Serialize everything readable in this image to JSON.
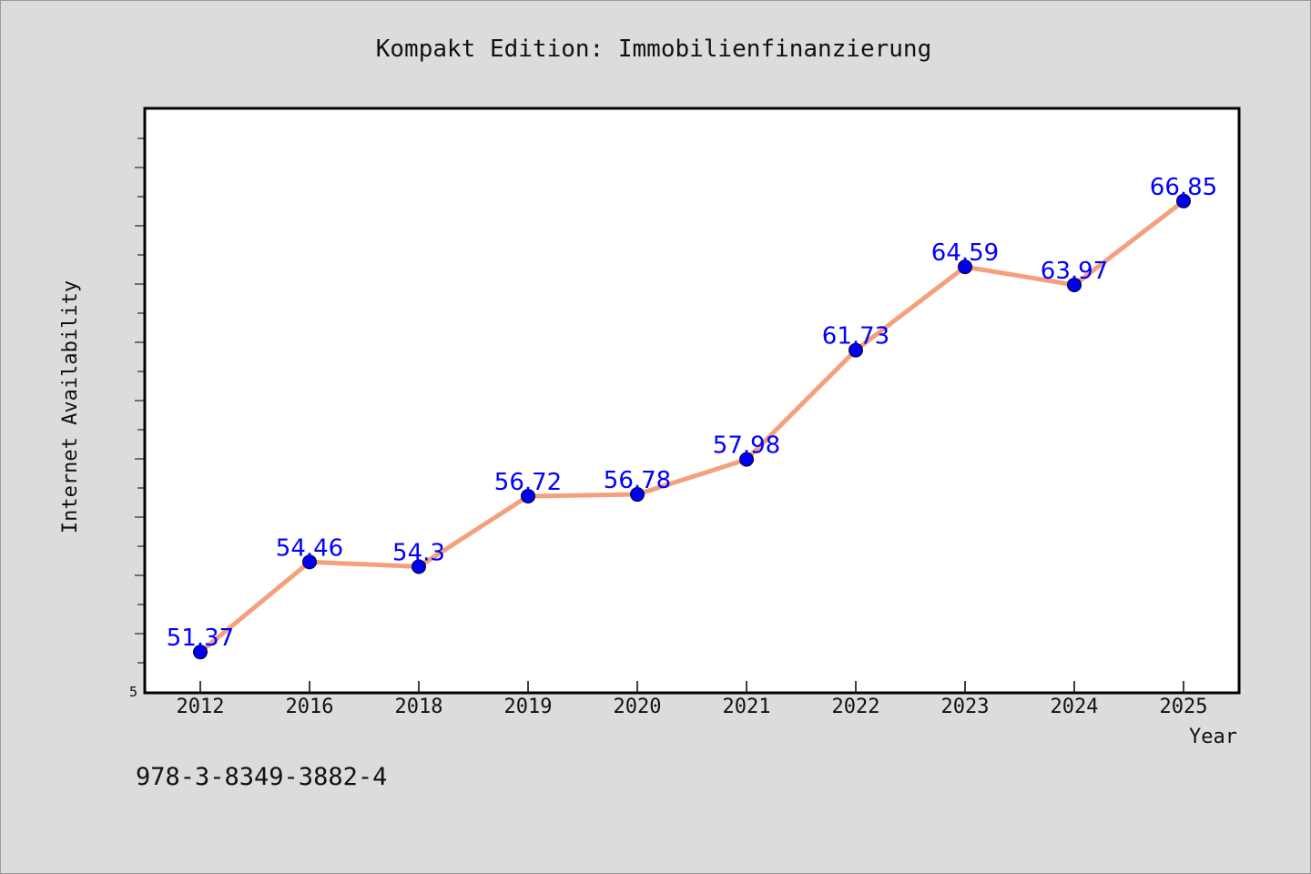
{
  "chart_data": {
    "type": "line",
    "title": "Kompakt Edition: Immobilienfinanzierung",
    "xlabel": "Year",
    "ylabel": "Internet Availability",
    "categories": [
      "2012",
      "2016",
      "2018",
      "2019",
      "2020",
      "2021",
      "2022",
      "2023",
      "2024",
      "2025"
    ],
    "series": [
      {
        "values": [
          51.37,
          54.46,
          54.3,
          56.72,
          56.78,
          57.98,
          61.73,
          64.59,
          63.97,
          66.85
        ],
        "labels": [
          "51.37",
          "54.46",
          "54.3",
          "56.72",
          "56.78",
          "57.98",
          "61.73",
          "64.59",
          "63.97",
          "66.85"
        ]
      }
    ],
    "y_tick_label": "5",
    "ylim": [
      50,
      70
    ],
    "grid": false,
    "line_color": "#f4a07c",
    "marker_color": "#0000ee",
    "label_color": "#0000ff"
  },
  "annotation": {
    "isbn": "978-3-8349-3882-4"
  }
}
